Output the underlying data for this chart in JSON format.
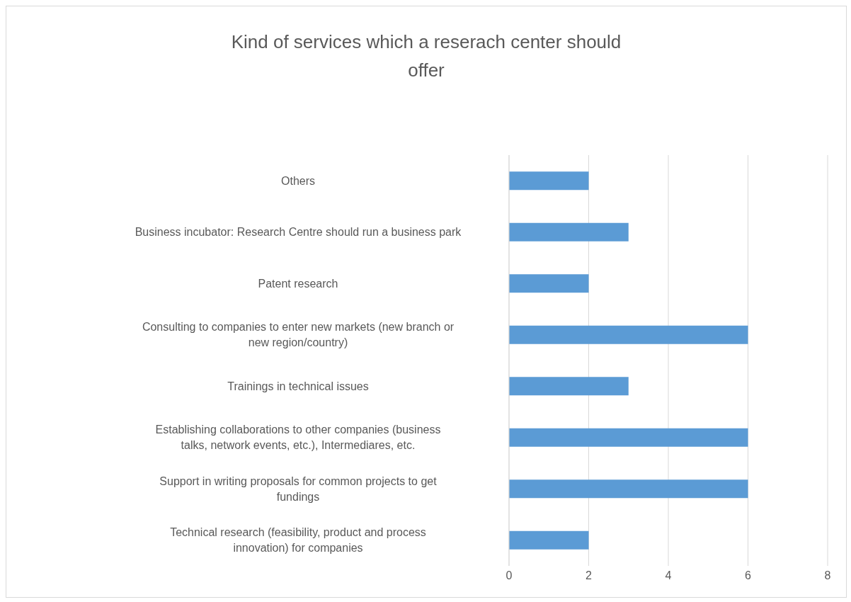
{
  "chart_data": {
    "type": "bar",
    "orientation": "horizontal",
    "title": "Kind of services which a reserach center should offer",
    "categories": [
      "Others",
      "Business incubator: Research Centre should run a business park",
      "Patent research",
      "Consulting to companies to enter new markets (new branch or new region/country)",
      "Trainings in technical issues",
      "Establishing collaborations to other companies (business talks, network events, etc.), Intermediares, etc.",
      "Support in writing proposals for common projects to get fundings",
      "Technical research (feasibility, product and process innovation) for companies"
    ],
    "values": [
      2,
      3,
      2,
      6,
      3,
      6,
      6,
      2
    ],
    "color": "#5b9bd5",
    "xlim": [
      0,
      8
    ],
    "xticks": [
      0,
      2,
      4,
      6,
      8
    ],
    "grid": "x"
  }
}
